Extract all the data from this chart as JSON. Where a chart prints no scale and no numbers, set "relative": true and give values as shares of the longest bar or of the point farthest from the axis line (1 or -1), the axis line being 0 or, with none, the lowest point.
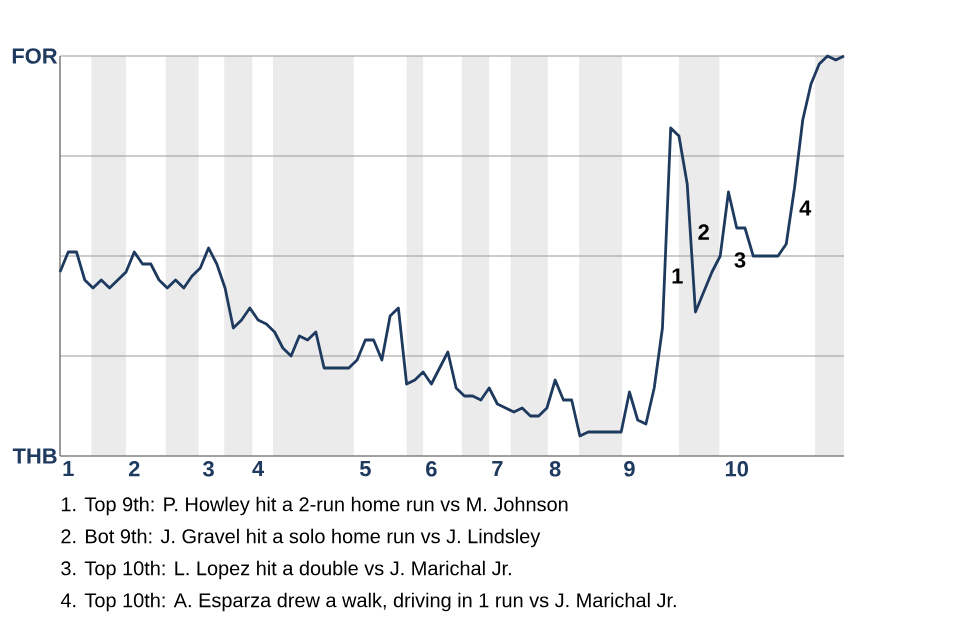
{
  "chart_data": {
    "type": "line",
    "relative": true,
    "line_style": "solid",
    "categories": [
      null,
      "1",
      null,
      null,
      null,
      null,
      null,
      null,
      null,
      "2",
      null,
      null,
      null,
      null,
      null,
      null,
      null,
      null,
      "3",
      null,
      null,
      null,
      null,
      null,
      "4",
      null,
      null,
      null,
      null,
      null,
      null,
      null,
      null,
      null,
      null,
      null,
      null,
      "5",
      null,
      null,
      null,
      null,
      null,
      null,
      null,
      "6",
      null,
      null,
      null,
      null,
      null,
      null,
      null,
      "7",
      null,
      null,
      null,
      null,
      null,
      null,
      "8",
      null,
      null,
      null,
      null,
      null,
      null,
      null,
      null,
      "9",
      null,
      null,
      null,
      null,
      null,
      null,
      null,
      null,
      null,
      null,
      null,
      null,
      "10",
      null,
      null,
      null,
      null,
      null,
      null,
      null,
      null,
      null,
      null,
      null,
      null,
      null
    ],
    "ref_lines": [
      {
        "axis": "y",
        "value": 0.25,
        "color": "#999999"
      },
      {
        "axis": "y",
        "value": 0.5,
        "color": "#999999"
      },
      {
        "axis": "y",
        "value": 0.75,
        "color": "#999999"
      },
      {
        "axis": "y",
        "value": 1,
        "color": "#999999"
      }
    ],
    "series": [
      {
        "color": "#1f3a5f",
        "values": [
          0.46,
          0.51,
          0.51,
          0.44,
          0.42,
          0.44,
          0.42,
          0.44,
          0.46,
          0.51,
          0.48,
          0.48,
          0.44,
          0.42,
          0.44,
          0.42,
          0.45,
          0.47,
          0.52,
          0.48,
          0.42,
          0.32,
          0.34,
          0.37,
          0.34,
          0.33,
          0.31,
          0.27,
          0.25,
          0.3,
          0.29,
          0.31,
          0.22,
          0.22,
          0.22,
          0.22,
          0.24,
          0.29,
          0.29,
          0.24,
          0.35,
          0.37,
          0.18,
          0.19,
          0.21,
          0.18,
          0.22,
          0.26,
          0.17,
          0.15,
          0.15,
          0.14,
          0.17,
          0.13,
          0.12,
          0.11,
          0.12,
          0.1,
          0.1,
          0.12,
          0.19,
          0.14,
          0.14,
          0.05,
          0.06,
          0.06,
          0.06,
          0.06,
          0.06,
          0.16,
          0.09,
          0.08,
          0.17,
          0.32,
          0.82,
          0.8,
          0.68,
          0.36,
          0.41,
          0.46,
          0.5,
          0.66,
          0.57,
          0.57,
          0.5,
          0.5,
          0.5,
          0.5,
          0.53,
          0.67,
          0.84,
          0.93,
          0.98,
          1,
          0.99,
          1
        ]
      }
    ],
    "annotations": [
      "1. Top 9th: P. Howley hit a 2-run home run vs M. Johnson",
      "2. Bot 9th: J. Gravel hit a solo home run vs J. Lindsley",
      "3. Top 10th: L. Lopez hit a double vs J. Marichal Jr.",
      "4. Top 10th: A. Esparza drew a walk, driving in 1 run vs J. Marichal Jr.",
      "FOR",
      "THB",
      "1",
      "2",
      "3",
      "4"
    ]
  }
}
